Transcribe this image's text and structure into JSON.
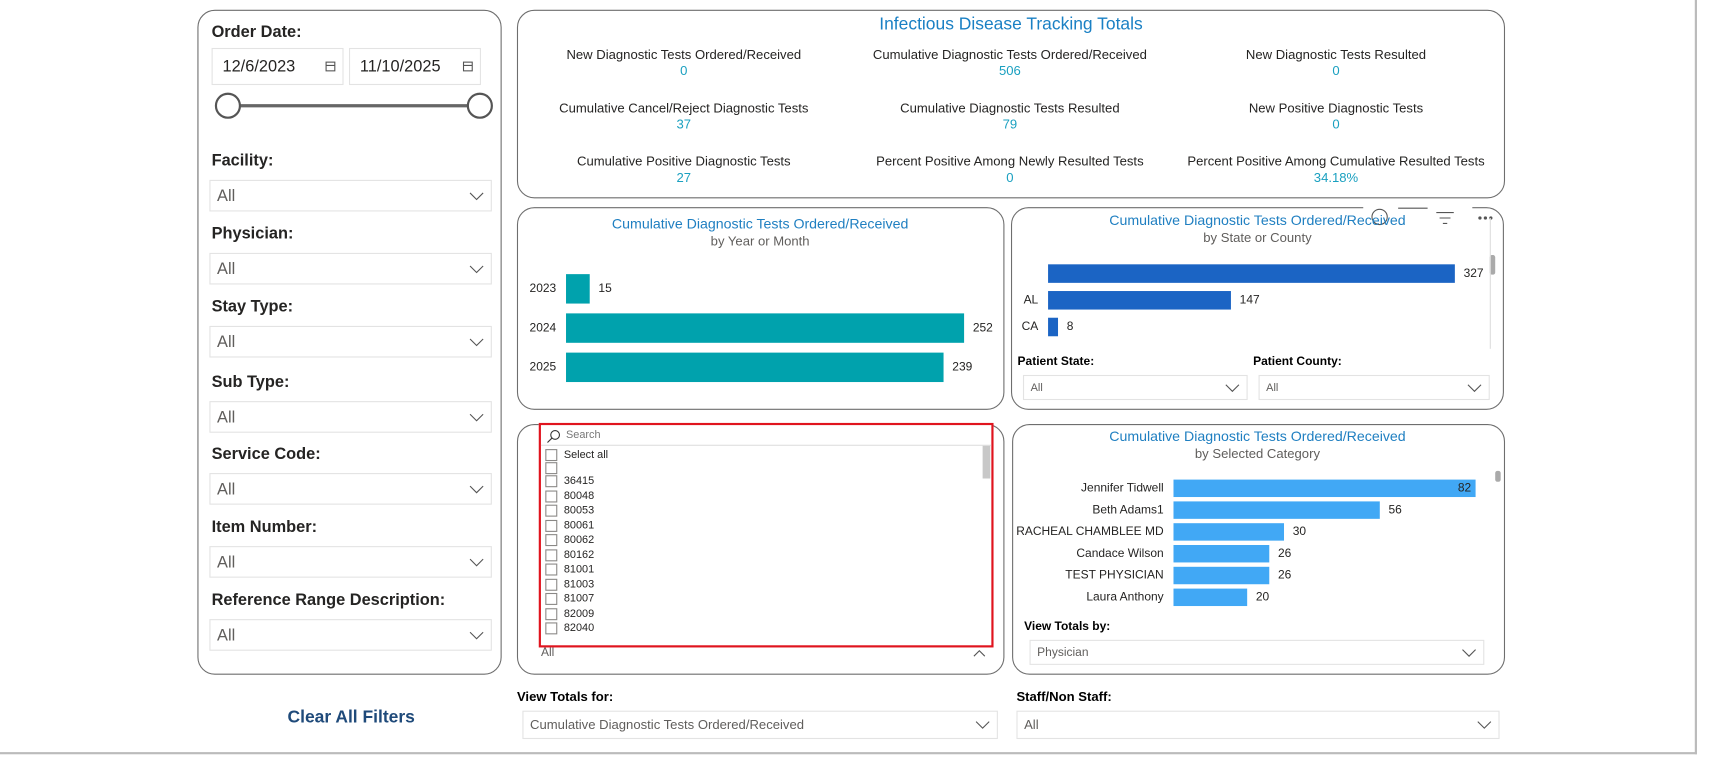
{
  "filters": {
    "order_date": {
      "label": "Order Date:",
      "start": "12/6/2023",
      "end": "11/10/2025"
    },
    "dropdowns": [
      {
        "label": "Facility:",
        "value": "All"
      },
      {
        "label": "Physician:",
        "value": "All"
      },
      {
        "label": "Stay Type:",
        "value": "All"
      },
      {
        "label": "Sub Type:",
        "value": "All"
      },
      {
        "label": "Service Code:",
        "value": "All"
      },
      {
        "label": "Item Number:",
        "value": "All"
      },
      {
        "label": "Reference Range Description:",
        "value": "All"
      }
    ],
    "clear": "Clear All Filters"
  },
  "totals": {
    "title": "Infectious Disease Tracking Totals",
    "items": [
      {
        "label": "New Diagnostic Tests Ordered/Received",
        "value": 0
      },
      {
        "label": "Cumulative Diagnostic Tests Ordered/Received",
        "value": 506
      },
      {
        "label": "New Diagnostic Tests Resulted",
        "value": 0
      },
      {
        "label": "Cumulative Cancel/Reject Diagnostic Tests",
        "value": 37
      },
      {
        "label": "Cumulative Diagnostic Tests Resulted",
        "value": 79
      },
      {
        "label": "New Positive Diagnostic Tests",
        "value": 0
      },
      {
        "label": "Cumulative Positive Diagnostic Tests",
        "value": 27
      },
      {
        "label": "Percent Positive Among Newly Resulted Tests",
        "value": 0
      },
      {
        "label": "Percent Positive Among Cumulative Resulted Tests",
        "value": "34.18%"
      }
    ]
  },
  "chart_data": [
    {
      "type": "bar",
      "title": "Cumulative Diagnostic Tests Ordered/Received",
      "subtitle": "by Year or Month",
      "categories": [
        "2023",
        "2024",
        "2025"
      ],
      "values": [
        15,
        252,
        239
      ],
      "color": "#00a2ad"
    },
    {
      "type": "bar",
      "title": "Cumulative Diagnostic Tests Ordered/Received",
      "subtitle": "by State or County",
      "categories": [
        null,
        "AL",
        "CA"
      ],
      "values": [
        327,
        147,
        8
      ],
      "color": "#1b64c4"
    },
    {
      "type": "bar",
      "title": "Cumulative Diagnostic Tests Ordered/Received",
      "subtitle": "by Selected Category",
      "categories": [
        "Jennifer Tidwell",
        "Beth Adams1",
        "RACHEAL CHAMBLEE MD",
        "Candace Wilson",
        "TEST PHYSICIAN",
        "Laura Anthony"
      ],
      "values": [
        82,
        56,
        30,
        26,
        26,
        20
      ],
      "color": "#41a8f5"
    }
  ],
  "state_filters": [
    {
      "label": "Patient State:",
      "value": "All"
    },
    {
      "label": "Patient County:",
      "value": "All"
    }
  ],
  "category_filter": {
    "label": "View Totals by:",
    "value": "Physician"
  },
  "code_list": {
    "search": "Search",
    "select_all": "Select all",
    "items": [
      "36415",
      "80048",
      "80053",
      "80061",
      "80062",
      "80162",
      "81001",
      "81003",
      "81007",
      "82009",
      "82040"
    ],
    "value": "All"
  },
  "bottom_filters": [
    {
      "label": "View Totals for:",
      "value": "Cumulative Diagnostic Tests Ordered/Received"
    },
    {
      "label": "Staff/Non Staff:",
      "value": "All"
    }
  ]
}
